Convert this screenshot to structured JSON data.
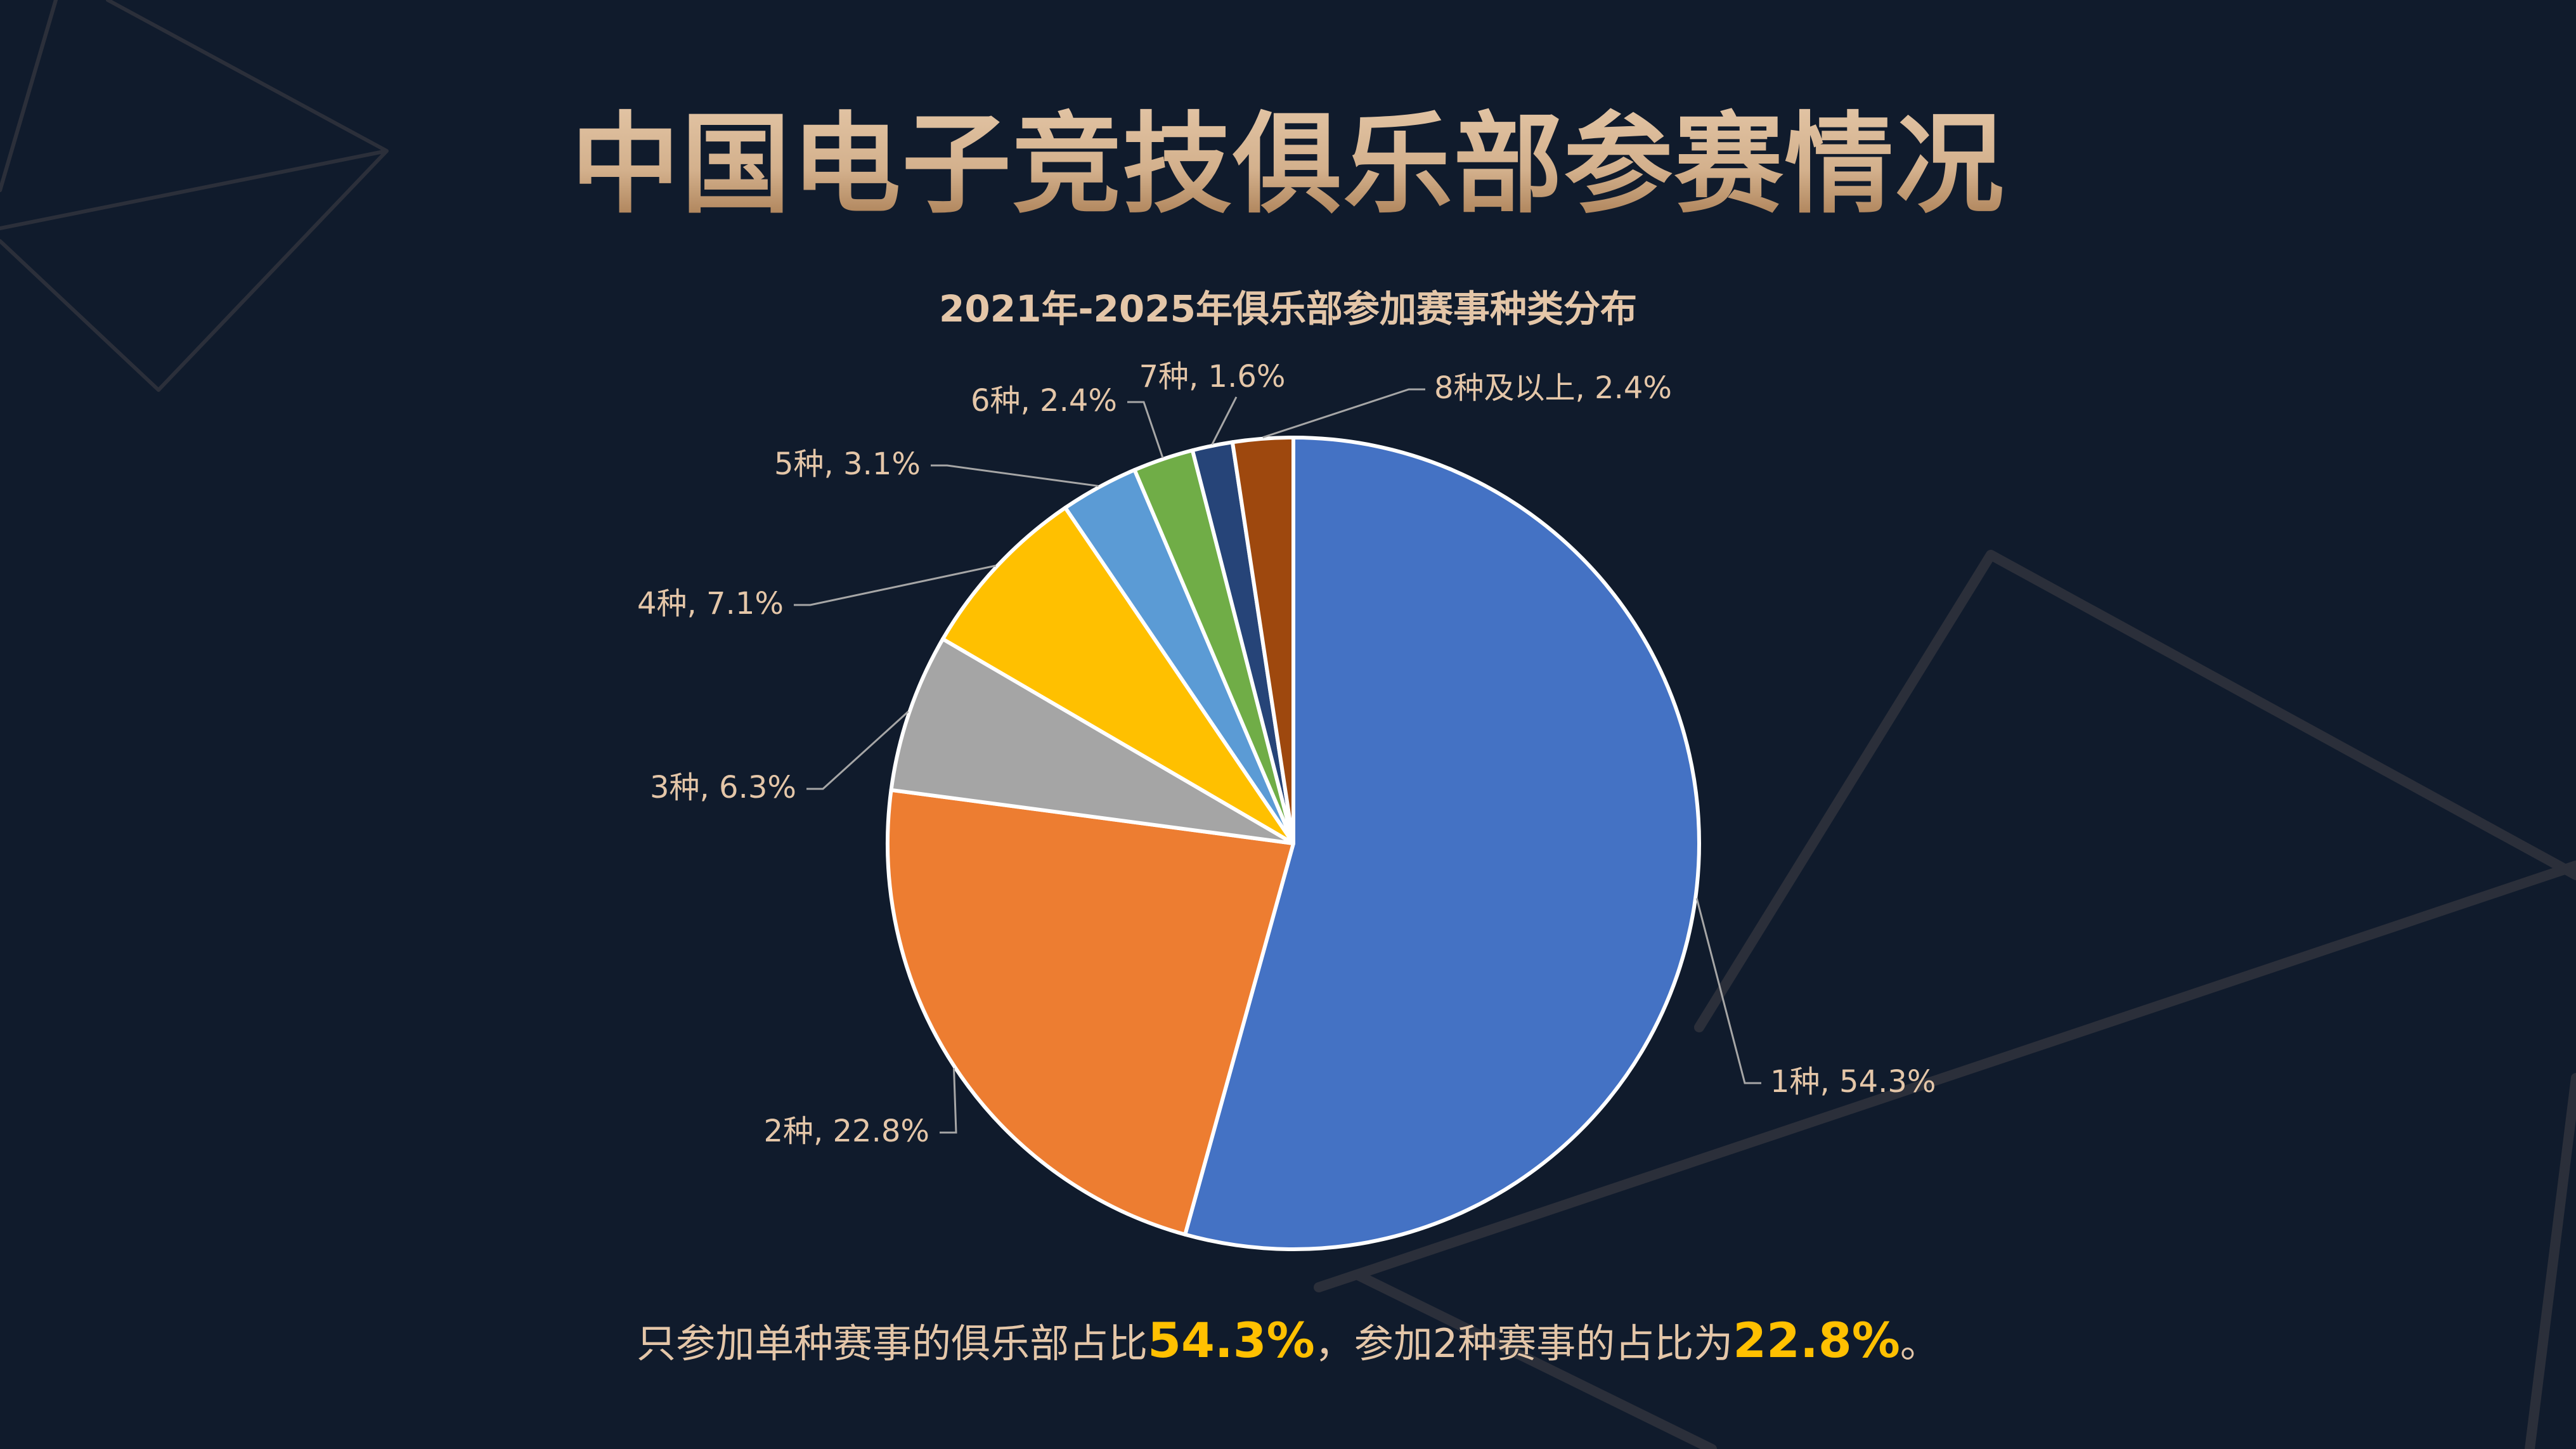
{
  "slide": {
    "title": "中国电子竞技俱乐部参赛情况",
    "summary": {
      "part1": "只参加单种赛事的俱乐部占比",
      "highlight1": "54.3%",
      "part2": "，参加2种赛事的占比为",
      "highlight2": "22.8%",
      "part3": "。"
    }
  },
  "colors": {
    "background": "#101b2c",
    "title_gradient_top": "#e2c4a4",
    "title_gradient_bottom": "#a87c52",
    "label_text": "#e4c6a8",
    "highlight": "#ffc000",
    "leader_line": "#a6a6a6",
    "decor_line": "#2b2f3a"
  },
  "chart_data": {
    "type": "pie",
    "title": "2021年-2025年俱乐部参加赛事种类分布",
    "start_angle_deg": 0,
    "direction": "clockwise",
    "legend": "none",
    "data_labels": "category, percentage with leader lines",
    "categories": [
      "1种",
      "2种",
      "3种",
      "4种",
      "5种",
      "6种",
      "7种",
      "8种及以上"
    ],
    "values": [
      54.3,
      22.8,
      6.3,
      7.1,
      3.1,
      2.4,
      1.6,
      2.4
    ],
    "unit": "%",
    "slice_colors": [
      "#4472c4",
      "#ed7d31",
      "#a5a5a5",
      "#ffc000",
      "#5b9bd5",
      "#70ad47",
      "#264478",
      "#9e480e"
    ],
    "labels": [
      "1种, 54.3%",
      "2种, 22.8%",
      "3种, 6.3%",
      "4种, 7.1%",
      "5种, 3.1%",
      "6种, 2.4%",
      "7种, 1.6%",
      "8种及以上, 2.4%"
    ]
  }
}
